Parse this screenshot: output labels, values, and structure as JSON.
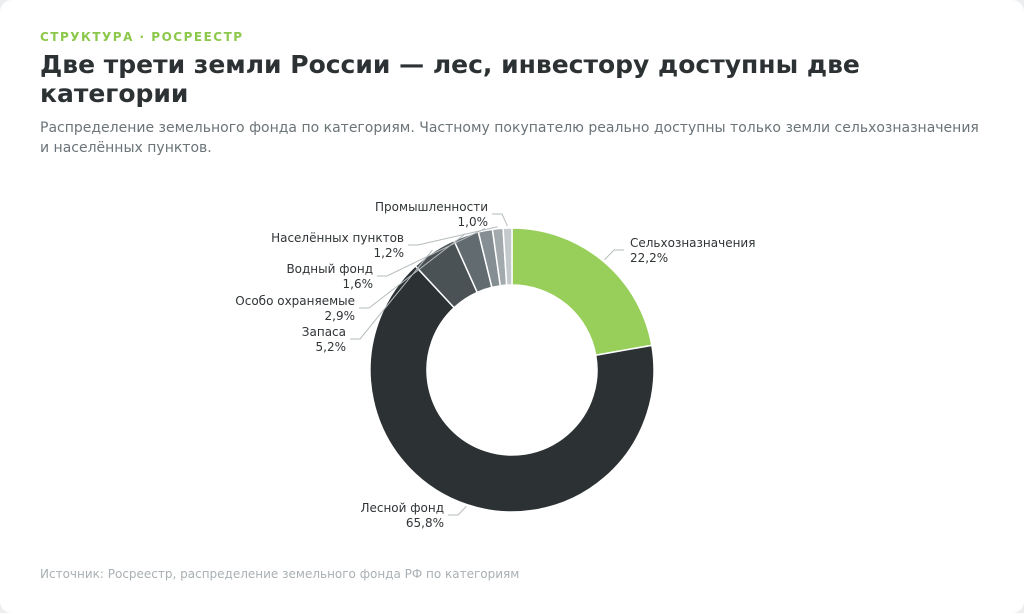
{
  "header": {
    "eyebrow": "СТРУКТУРА · РОСРЕЕСТР",
    "title": "Две трети земли России — лес, инвестору доступны две категории",
    "subtitle": "Распределение земельного фонда по категориям. Частному покупателю реально доступны только земли сельхозназначения и населённых пунктов."
  },
  "footer": {
    "source": "Источник: Росреестр, распределение земельного фонда РФ по категориям"
  },
  "chart_data": {
    "type": "pie",
    "donut": true,
    "start": "top, clockwise",
    "slices": [
      {
        "label": "Сельхозназначения",
        "value": 22.2,
        "value_label": "22,2%",
        "color": "#97cf5a"
      },
      {
        "label": "Лесной фонд",
        "value": 65.8,
        "value_label": "65,8%",
        "color": "#2c3234"
      },
      {
        "label": "Запаса",
        "value": 5.2,
        "value_label": "5,2%",
        "color": "#4a5256"
      },
      {
        "label": "Особо охраняемые",
        "value": 2.9,
        "value_label": "2,9%",
        "color": "#626b70"
      },
      {
        "label": "Водный фонд",
        "value": 1.6,
        "value_label": "1,6%",
        "color": "#858e93"
      },
      {
        "label": "Населённых пунктов",
        "value": 1.2,
        "value_label": "1,2%",
        "color": "#a3aaae"
      },
      {
        "label": "Промышленности",
        "value": 1.0,
        "value_label": "1,0%",
        "color": "#c4c9cc"
      }
    ]
  }
}
